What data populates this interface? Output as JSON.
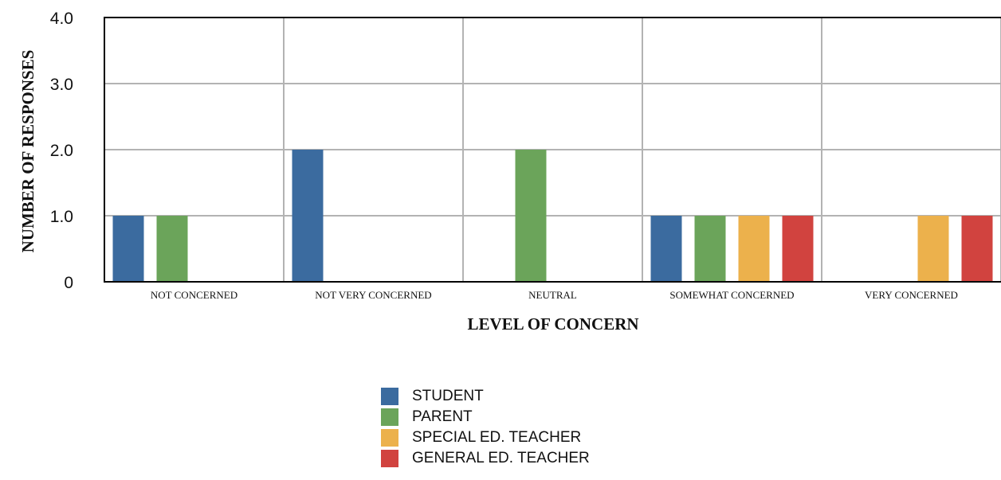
{
  "chart_data": {
    "type": "bar",
    "xlabel": "LEVEL OF CONCERN",
    "ylabel": "NUMBER OF RESPONSES",
    "ylim": [
      0,
      4
    ],
    "yticks": [
      "0",
      "1.0",
      "2.0",
      "3.0",
      "4.0"
    ],
    "grid": true,
    "legend_position": "bottom-center",
    "categories": [
      "NOT CONCERNED",
      "NOT VERY CONCERNED",
      "NEUTRAL",
      "SOMEWHAT CONCERNED",
      "VERY CONCERNED"
    ],
    "series": [
      {
        "name": "STUDENT",
        "color": "#3b6b9f",
        "values": [
          1,
          2,
          0,
          1,
          0
        ]
      },
      {
        "name": "PARENT",
        "color": "#6ba45a",
        "values": [
          1,
          0,
          2,
          1,
          0
        ]
      },
      {
        "name": "SPECIAL ED. TEACHER",
        "color": "#ecb14c",
        "values": [
          0,
          0,
          0,
          1,
          1
        ]
      },
      {
        "name": "GENERAL ED. TEACHER",
        "color": "#d1433f",
        "values": [
          0,
          0,
          0,
          1,
          1
        ]
      }
    ]
  }
}
